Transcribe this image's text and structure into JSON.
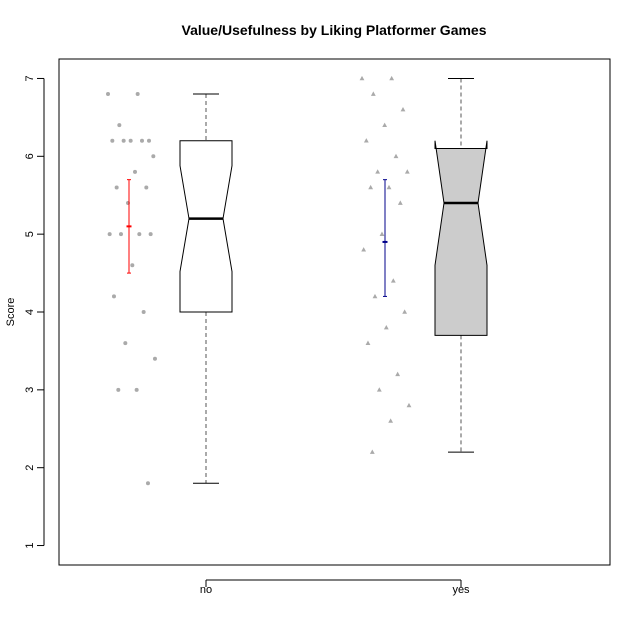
{
  "chart_data": {
    "type": "box",
    "title": "Value/Usefulness by Liking Platformer Games",
    "xlabel": "",
    "ylabel": "Score",
    "ylim": [
      0.75,
      7.25
    ],
    "yticks": [
      1,
      2,
      3,
      4,
      5,
      6,
      7
    ],
    "categories": [
      "no",
      "yes"
    ],
    "grid": false,
    "boxes": [
      {
        "category": "no",
        "whisker_low": 1.8,
        "q1": 4.0,
        "median": 5.2,
        "q3": 6.2,
        "whisker_high": 6.8,
        "notch_low": 4.52,
        "notch_high": 5.88,
        "fill": "#ffffff"
      },
      {
        "category": "yes",
        "whisker_low": 2.2,
        "q1": 3.7,
        "median": 5.4,
        "q3": 6.1,
        "whisker_high": 7.0,
        "notch_low": 4.6,
        "notch_high": 6.2,
        "fill": "#cccccc"
      }
    ],
    "points": [
      {
        "category": "no",
        "marker": "circle",
        "color": "#aaaaaa",
        "values": [
          6.8,
          6.8,
          6.4,
          6.2,
          6.2,
          6.2,
          6.2,
          6.2,
          6.0,
          5.8,
          5.6,
          5.6,
          5.4,
          5.0,
          5.0,
          5.0,
          5.0,
          4.6,
          4.2,
          4.0,
          3.6,
          3.4,
          3.0,
          3.0,
          1.8
        ]
      },
      {
        "category": "yes",
        "marker": "triangle",
        "color": "#aaaaaa",
        "values": [
          7.0,
          7.0,
          6.8,
          6.6,
          6.4,
          6.2,
          6.0,
          5.8,
          5.8,
          5.6,
          5.6,
          5.4,
          5.0,
          4.8,
          4.4,
          4.2,
          4.0,
          3.8,
          3.6,
          3.2,
          3.0,
          2.8,
          2.6,
          2.2
        ]
      }
    ],
    "mean_ci": [
      {
        "category": "no",
        "mean": 5.1,
        "low": 4.5,
        "high": 5.7,
        "color": "#ff0000"
      },
      {
        "category": "yes",
        "mean": 4.9,
        "low": 4.2,
        "high": 5.7,
        "color": "#00008b"
      }
    ]
  }
}
